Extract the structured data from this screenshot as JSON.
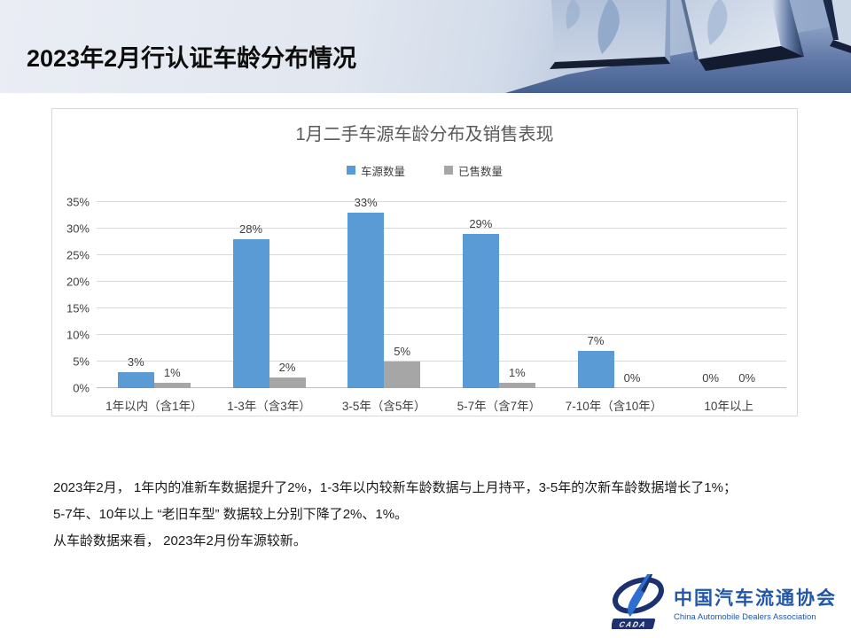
{
  "slide": {
    "title": "2023年2月行认证车龄分布情况"
  },
  "chart_data": {
    "type": "bar",
    "title": "1月二手车源车龄分布及销售表现",
    "categories": [
      "1年以内（含1年）",
      "1-3年（含3年）",
      "3-5年（含5年）",
      "5-7年（含7年）",
      "7-10年（含10年）",
      "10年以上"
    ],
    "series": [
      {
        "name": "车源数量",
        "color": "#5B9BD5",
        "values": [
          3,
          28,
          33,
          29,
          7,
          0
        ]
      },
      {
        "name": "已售数量",
        "color": "#A6A6A6",
        "values": [
          1,
          2,
          5,
          1,
          0,
          0
        ]
      }
    ],
    "value_suffix": "%",
    "xlabel": "",
    "ylabel": "",
    "ylim": [
      0,
      35
    ],
    "ytick_step": 5,
    "grid": true,
    "legend_position": "top",
    "gridline_color": "#D9D9D9"
  },
  "body": {
    "line1": "2023年2月， 1年内的准新车数据提升了2%，1-3年以内较新车龄数据与上月持平，3-5年的次新车龄数据增长了1%；",
    "line2": "5-7年、10年以上 “老旧车型” 数据较上分别下降了2%、1%。",
    "line3": "从车龄数据来看， 2023年2月份车源较新。"
  },
  "logo": {
    "badge": "CADA",
    "name_cn": "中国汽车流通协会",
    "name_en": "China Automobile Dealers Association"
  },
  "colors": {
    "bar_blue": "#5B9BD5",
    "bar_gray": "#A6A6A6",
    "logo_blue": "#2156A8",
    "logo_navy": "#1D3070"
  }
}
